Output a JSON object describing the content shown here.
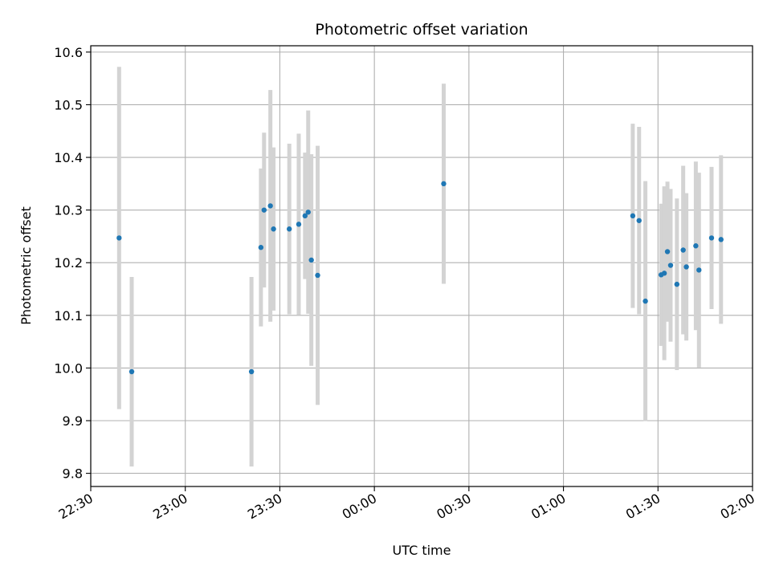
{
  "chart_data": {
    "type": "scatter",
    "title": "Photometric offset variation",
    "xlabel": "UTC time",
    "ylabel": "Photometric offset",
    "x_ticks": [
      "22:30",
      "23:00",
      "23:30",
      "00:00",
      "00:30",
      "01:00",
      "01:30",
      "02:00"
    ],
    "y_ticks": [
      "9.8",
      "9.9",
      "10.0",
      "10.1",
      "10.2",
      "10.3",
      "10.4",
      "10.5",
      "10.6"
    ],
    "ylim": [
      9.775,
      10.612
    ],
    "xlim": [
      "22:30",
      "02:00"
    ],
    "grid": true,
    "error_bar_color": "#d3d3d3",
    "point_color": "#1f77b4",
    "points": [
      {
        "t": "22:39",
        "y": 10.247,
        "err": 0.325
      },
      {
        "t": "22:43",
        "y": 9.993,
        "err": 0.18
      },
      {
        "t": "23:21",
        "y": 9.993,
        "err": 0.18
      },
      {
        "t": "23:24",
        "y": 10.229,
        "err": 0.15
      },
      {
        "t": "23:25",
        "y": 10.3,
        "err": 0.147
      },
      {
        "t": "23:27",
        "y": 10.308,
        "err": 0.22
      },
      {
        "t": "23:28",
        "y": 10.264,
        "err": 0.155
      },
      {
        "t": "23:33",
        "y": 10.264,
        "err": 0.162
      },
      {
        "t": "23:36",
        "y": 10.273,
        "err": 0.172
      },
      {
        "t": "23:38",
        "y": 10.289,
        "err": 0.12
      },
      {
        "t": "23:39",
        "y": 10.296,
        "err": 0.193
      },
      {
        "t": "23:40",
        "y": 10.205,
        "err": 0.201
      },
      {
        "t": "23:42",
        "y": 10.176,
        "err": 0.246
      },
      {
        "t": "00:22",
        "y": 10.35,
        "err": 0.19
      },
      {
        "t": "01:22",
        "y": 10.289,
        "err": 0.175
      },
      {
        "t": "01:24",
        "y": 10.28,
        "err": 0.178
      },
      {
        "t": "01:26",
        "y": 10.127,
        "err": 0.228
      },
      {
        "t": "01:31",
        "y": 10.177,
        "err": 0.135
      },
      {
        "t": "01:32",
        "y": 10.18,
        "err": 0.165
      },
      {
        "t": "01:33",
        "y": 10.221,
        "err": 0.133
      },
      {
        "t": "01:34",
        "y": 10.195,
        "err": 0.145
      },
      {
        "t": "01:36",
        "y": 10.159,
        "err": 0.163
      },
      {
        "t": "01:38",
        "y": 10.224,
        "err": 0.16
      },
      {
        "t": "01:39",
        "y": 10.192,
        "err": 0.14
      },
      {
        "t": "01:42",
        "y": 10.232,
        "err": 0.16
      },
      {
        "t": "01:43",
        "y": 10.186,
        "err": 0.185
      },
      {
        "t": "01:47",
        "y": 10.247,
        "err": 0.135
      },
      {
        "t": "01:50",
        "y": 10.244,
        "err": 0.16
      }
    ]
  }
}
